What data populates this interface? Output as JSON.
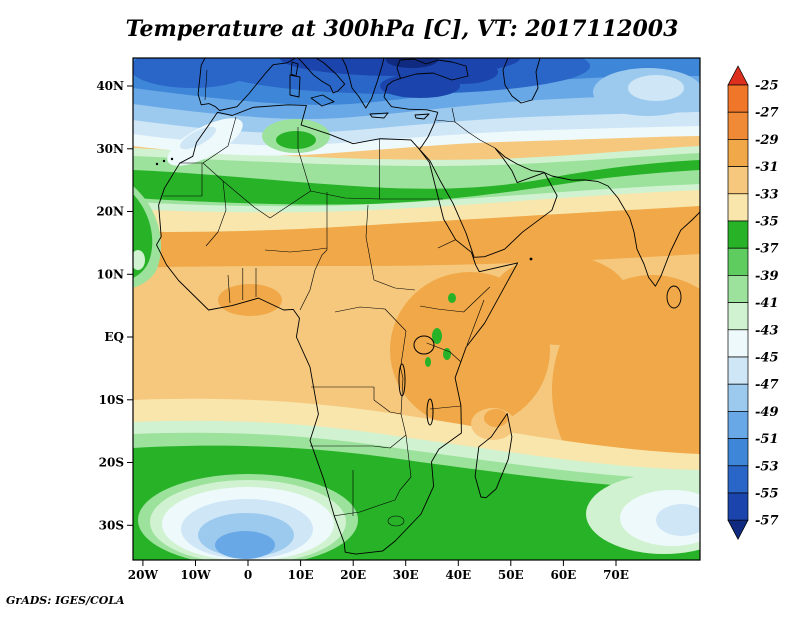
{
  "title": "Temperature at 300hPa [C], VT: 2017112003",
  "credit": "GrADS: IGES/COLA",
  "chart_data": {
    "type": "heatmap",
    "subtype": "filled-contour-weather-map",
    "variable": "Temperature",
    "pressure_level": "300hPa",
    "units": "C",
    "valid_time": "2017112003",
    "region": "Africa / Mediterranean / Middle East",
    "lon_range": [
      -22,
      86
    ],
    "lat_range": [
      -35.5,
      44.5
    ],
    "grid": false,
    "x_tick_labels": [
      "20W",
      "10W",
      "0",
      "10E",
      "20E",
      "30E",
      "40E",
      "50E",
      "60E",
      "70E"
    ],
    "y_tick_labels": [
      "40N",
      "30N",
      "20N",
      "10N",
      "EQ",
      "10S",
      "20S",
      "30S"
    ],
    "colorbar": {
      "orientation": "vertical",
      "position": "right",
      "tick_labels": [
        "-25",
        "-27",
        "-29",
        "-31",
        "-33",
        "-35",
        "-37",
        "-39",
        "-41",
        "-43",
        "-45",
        "-47",
        "-49",
        "-51",
        "-53",
        "-55",
        "-57"
      ],
      "colors": [
        "#dd2f1e",
        "#f0762a",
        "#f18a36",
        "#f0a848",
        "#f5c87e",
        "#f9e6ac",
        "#28b228",
        "#5ecc5e",
        "#9ce29c",
        "#d0f2d0",
        "#eef9fb",
        "#cfe6f7",
        "#9ccaee",
        "#68a8e6",
        "#3e86d8",
        "#2a65c8",
        "#1b44ac",
        "#102a80"
      ],
      "bands": [
        "> -25",
        "-25 to -27",
        "-27 to -29",
        "-29 to -31",
        "-31 to -33",
        "-33 to -35",
        "-35 to -37",
        "-37 to -39",
        "-39 to -41",
        "-41 to -43",
        "-43 to -45",
        "-45 to -47",
        "-47 to -49",
        "-49 to -51",
        "-51 to -53",
        "-53 to -55",
        "-55 to -57",
        "< -57"
      ]
    },
    "pattern_summary": {
      "warmest_band_location": "tropical Africa and western Indian Ocean, about -29 to -33 C",
      "cold_core_location": "eastern Mediterranean / Black Sea area, below -55 C",
      "secondary_cold_pool": "South Atlantic southwest of South Africa, about -49 to -51 C"
    }
  }
}
